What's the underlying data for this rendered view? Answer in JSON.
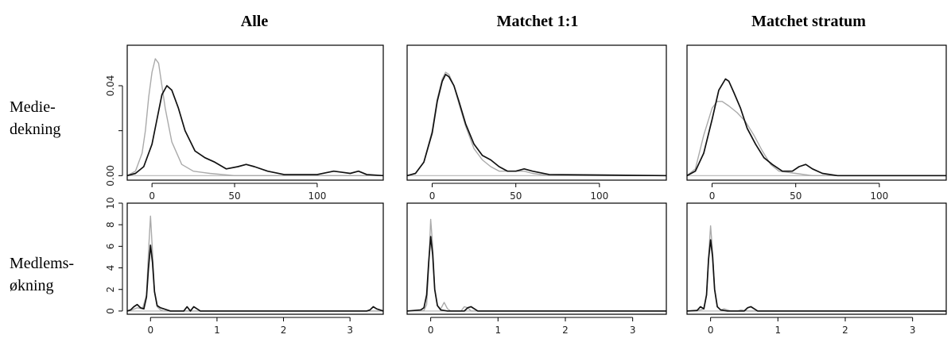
{
  "colors": {
    "series_dark": "#111111",
    "series_light": "#aaaaaa",
    "frame": "#000000"
  },
  "columns": [
    "Alle",
    "Matchet 1:1",
    "Matchet stratum"
  ],
  "rows": [
    {
      "label_lines": [
        "Medie-",
        "dekning"
      ]
    },
    {
      "label_lines": [
        "Medlems-",
        "økning"
      ]
    }
  ],
  "chart_data": [
    {
      "type": "line",
      "row": 0,
      "col": 0,
      "title": "Alle",
      "xlim": [
        -15,
        140
      ],
      "ylim": [
        -0.002,
        0.058
      ],
      "x_ticks": [
        0,
        50,
        100
      ],
      "y_ticks": [
        0.0,
        0.04
      ],
      "y_tick_labels": [
        "0.00",
        "0.04"
      ],
      "series": [
        {
          "x": [
            -15,
            -10,
            -6,
            -4,
            -2,
            0,
            2,
            4,
            6,
            8,
            12,
            18,
            25,
            35,
            50,
            60,
            80,
            105,
            115,
            125,
            140
          ],
          "y": [
            0,
            0.002,
            0.01,
            0.02,
            0.035,
            0.046,
            0.052,
            0.05,
            0.04,
            0.03,
            0.015,
            0.005,
            0.002,
            0.001,
            0,
            0,
            0,
            0,
            0,
            0,
            0
          ]
        },
        {
          "x": [
            -15,
            -10,
            -5,
            0,
            3,
            6,
            9,
            12,
            16,
            20,
            26,
            32,
            38,
            45,
            52,
            57,
            62,
            70,
            80,
            100,
            110,
            115,
            120,
            125,
            130,
            140
          ],
          "y": [
            0,
            0.001,
            0.004,
            0.014,
            0.025,
            0.036,
            0.04,
            0.038,
            0.03,
            0.02,
            0.011,
            0.008,
            0.006,
            0.003,
            0.004,
            0.005,
            0.004,
            0.002,
            0.0005,
            0.0005,
            0.002,
            0.0015,
            0.001,
            0.002,
            0.0005,
            0
          ]
        }
      ]
    },
    {
      "type": "line",
      "row": 0,
      "col": 1,
      "title": "Matchet 1:1",
      "xlim": [
        -15,
        140
      ],
      "ylim": [
        -0.002,
        0.058
      ],
      "x_ticks": [
        0,
        50,
        100
      ],
      "series": [
        {
          "x": [
            -15,
            -10,
            -5,
            0,
            3,
            6,
            8,
            10,
            13,
            16,
            20,
            25,
            30,
            35,
            40,
            50,
            55,
            60,
            70,
            140
          ],
          "y": [
            0,
            0.001,
            0.006,
            0.02,
            0.034,
            0.043,
            0.046,
            0.045,
            0.04,
            0.032,
            0.022,
            0.012,
            0.007,
            0.004,
            0.002,
            0.002,
            0.002,
            0.001,
            0,
            0
          ]
        },
        {
          "x": [
            -15,
            -10,
            -5,
            0,
            3,
            6,
            8,
            10,
            13,
            16,
            20,
            25,
            30,
            35,
            40,
            45,
            50,
            55,
            60,
            70,
            140
          ],
          "y": [
            0,
            0.001,
            0.006,
            0.019,
            0.033,
            0.042,
            0.045,
            0.044,
            0.04,
            0.033,
            0.023,
            0.014,
            0.009,
            0.007,
            0.004,
            0.002,
            0.002,
            0.003,
            0.002,
            0.0005,
            0
          ]
        }
      ]
    },
    {
      "type": "line",
      "row": 0,
      "col": 2,
      "title": "Matchet stratum",
      "xlim": [
        -15,
        140
      ],
      "ylim": [
        -0.002,
        0.058
      ],
      "x_ticks": [
        0,
        50,
        100
      ],
      "series": [
        {
          "x": [
            -15,
            -10,
            -5,
            0,
            3,
            6,
            10,
            15,
            20,
            25,
            30,
            35,
            40,
            50,
            60,
            140
          ],
          "y": [
            0,
            0.003,
            0.018,
            0.03,
            0.033,
            0.033,
            0.031,
            0.028,
            0.024,
            0.018,
            0.011,
            0.005,
            0.002,
            0.001,
            0,
            0
          ]
        },
        {
          "x": [
            -15,
            -10,
            -5,
            0,
            4,
            8,
            10,
            13,
            17,
            21,
            26,
            31,
            36,
            42,
            48,
            52,
            56,
            60,
            66,
            75,
            140
          ],
          "y": [
            0,
            0.002,
            0.01,
            0.025,
            0.038,
            0.043,
            0.042,
            0.037,
            0.03,
            0.021,
            0.014,
            0.008,
            0.005,
            0.002,
            0.002,
            0.004,
            0.005,
            0.003,
            0.001,
            0,
            0
          ]
        }
      ]
    },
    {
      "type": "line",
      "row": 1,
      "col": 0,
      "xlim": [
        -0.35,
        3.5
      ],
      "ylim": [
        -0.3,
        10
      ],
      "x_ticks": [
        0,
        1,
        2,
        3
      ],
      "y_ticks": [
        0,
        2,
        4,
        6,
        8,
        10
      ],
      "series": [
        {
          "x": [
            -0.35,
            -0.3,
            -0.2,
            -0.12,
            -0.06,
            -0.03,
            0,
            0.03,
            0.06,
            0.1,
            0.15,
            0.2,
            0.3,
            3.5
          ],
          "y": [
            0,
            0.05,
            0.3,
            0.2,
            1.5,
            5.5,
            8.8,
            5.5,
            1.8,
            0.4,
            0.1,
            0,
            0,
            0
          ]
        },
        {
          "x": [
            -0.35,
            -0.3,
            -0.25,
            -0.2,
            -0.15,
            -0.1,
            -0.06,
            -0.03,
            0,
            0.03,
            0.06,
            0.1,
            0.15,
            0.2,
            0.3,
            0.5,
            0.55,
            0.6,
            0.65,
            0.7,
            0.75,
            0.9,
            3.25,
            3.3,
            3.35,
            3.4,
            3.5
          ],
          "y": [
            0,
            0.1,
            0.4,
            0.6,
            0.3,
            0.2,
            1.3,
            4.0,
            6.1,
            4.5,
            1.8,
            0.5,
            0.3,
            0.2,
            0,
            0,
            0.4,
            0,
            0.4,
            0.2,
            0,
            0,
            0,
            0.1,
            0.4,
            0.2,
            0
          ]
        }
      ]
    },
    {
      "type": "line",
      "row": 1,
      "col": 1,
      "xlim": [
        -0.35,
        3.5
      ],
      "ylim": [
        -0.3,
        10
      ],
      "x_ticks": [
        0,
        1,
        2,
        3
      ],
      "series": [
        {
          "x": [
            -0.35,
            -0.1,
            -0.06,
            -0.03,
            0,
            0.03,
            0.06,
            0.1,
            0.15,
            0.2,
            0.25,
            0.3,
            0.45,
            0.5,
            0.55,
            0.6,
            3.5
          ],
          "y": [
            0,
            0.05,
            0.6,
            4.0,
            8.5,
            6.0,
            2.0,
            0.5,
            0.2,
            0.8,
            0.2,
            0,
            0,
            0.4,
            0.3,
            0,
            0
          ]
        },
        {
          "x": [
            -0.35,
            -0.15,
            -0.1,
            -0.06,
            -0.03,
            0,
            0.03,
            0.06,
            0.1,
            0.15,
            0.25,
            0.5,
            0.55,
            0.6,
            0.7,
            3.5
          ],
          "y": [
            0,
            0.1,
            0.3,
            1.5,
            4.5,
            6.9,
            5.2,
            2.0,
            0.5,
            0.1,
            0,
            0,
            0.3,
            0.4,
            0,
            0
          ]
        }
      ]
    },
    {
      "type": "line",
      "row": 1,
      "col": 2,
      "xlim": [
        -0.35,
        3.5
      ],
      "ylim": [
        -0.3,
        10
      ],
      "x_ticks": [
        0,
        1,
        2,
        3
      ],
      "series": [
        {
          "x": [
            -0.35,
            -0.15,
            -0.1,
            -0.06,
            -0.03,
            0,
            0.03,
            0.06,
            0.1,
            0.15,
            0.2,
            0.3,
            0.4,
            0.45,
            0.55,
            3.5
          ],
          "y": [
            0,
            0.1,
            0.2,
            1.5,
            5.0,
            7.9,
            5.5,
            2.0,
            0.4,
            0.1,
            0.2,
            0,
            0,
            0.1,
            0,
            0
          ]
        },
        {
          "x": [
            -0.35,
            -0.2,
            -0.15,
            -0.1,
            -0.06,
            -0.03,
            0,
            0.03,
            0.06,
            0.1,
            0.15,
            0.25,
            0.5,
            0.55,
            0.6,
            0.7,
            3.5
          ],
          "y": [
            0,
            0.05,
            0.4,
            0.2,
            1.5,
            4.8,
            6.6,
            5.0,
            2.0,
            0.4,
            0.1,
            0,
            0,
            0.3,
            0.4,
            0,
            0
          ]
        }
      ]
    }
  ]
}
